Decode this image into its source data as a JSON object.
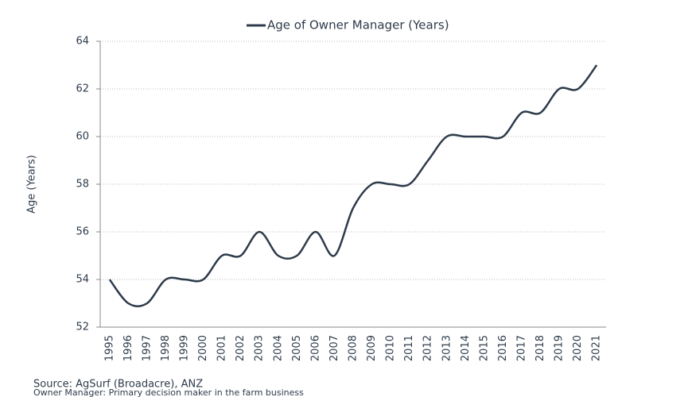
{
  "chart_data": {
    "type": "line",
    "y_label": "Age (Years)",
    "categories": [
      "1995",
      "1996",
      "1997",
      "1998",
      "1999",
      "2000",
      "2001",
      "2002",
      "2003",
      "2004",
      "2005",
      "2006",
      "2007",
      "2008",
      "2009",
      "2010",
      "2011",
      "2012",
      "2013",
      "2014",
      "2015",
      "2016",
      "2017",
      "2018",
      "2019",
      "2020",
      "2021"
    ],
    "series": [
      {
        "name": "Age of Owner Manager (Years)",
        "color": "#2e3b4b",
        "values": [
          54,
          53,
          53,
          54,
          54,
          54,
          55,
          55,
          56,
          55,
          55,
          56,
          55,
          57,
          58,
          58,
          58,
          59,
          60,
          60,
          60,
          60,
          61,
          61,
          62,
          62,
          63
        ]
      }
    ],
    "ylim": [
      52,
      64
    ],
    "yticks": [
      52,
      54,
      56,
      58,
      60,
      62,
      64
    ],
    "grid": true,
    "legend": "top",
    "notes": [
      "Source: AgSurf (Broadacre), ANZ",
      "Owner Manager: Primary decision maker in the farm business"
    ]
  }
}
